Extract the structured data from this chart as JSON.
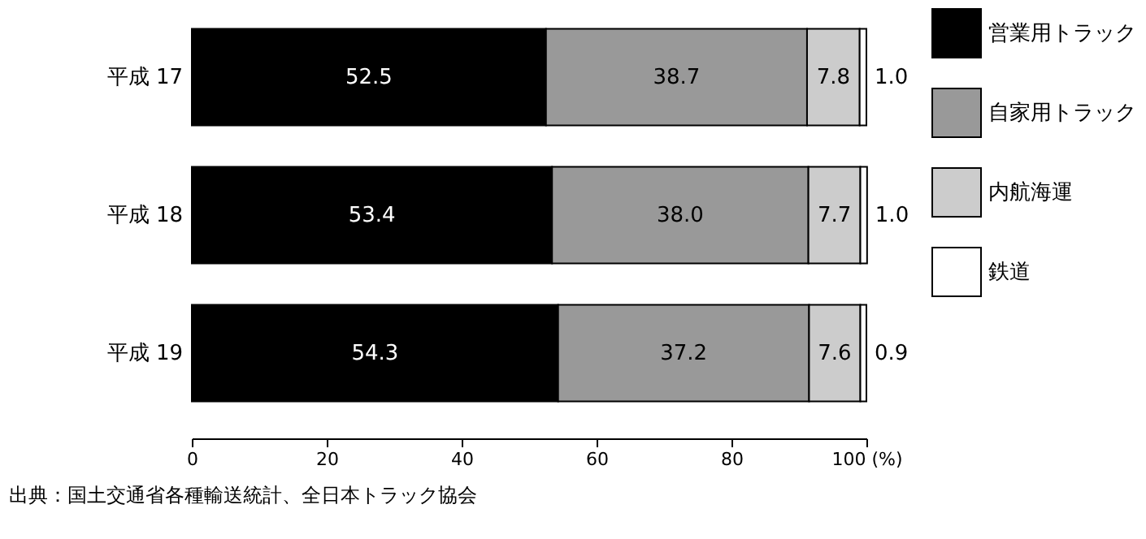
{
  "chart_data": {
    "type": "bar",
    "orientation": "horizontal",
    "stacked": true,
    "categories": [
      "平成 17",
      "平成 18",
      "平成 19"
    ],
    "series": [
      {
        "name": "営業用トラック",
        "color": "#000000",
        "values": [
          52.5,
          53.4,
          54.3
        ]
      },
      {
        "name": "自家用トラック",
        "color": "#999999",
        "values": [
          38.7,
          38.0,
          37.2
        ]
      },
      {
        "name": "内航海運",
        "color": "#cccccc",
        "values": [
          7.8,
          7.7,
          7.6
        ]
      },
      {
        "name": "鉄道",
        "color": "#ffffff",
        "values": [
          1.0,
          1.0,
          0.9
        ]
      }
    ],
    "xlim": [
      0,
      100
    ],
    "xticks": [
      0,
      20,
      40,
      60,
      80,
      {
        "value": 100,
        "label": "100 (%)"
      }
    ],
    "value_labels": [
      [
        "52.5",
        "53.4",
        "54.3"
      ],
      [
        "38.7",
        "38.0",
        "37.2"
      ],
      [
        "7.8",
        "7.7",
        "7.6"
      ],
      [
        "1.0",
        "1.0",
        "0.9"
      ]
    ],
    "legend": "right",
    "grid": false,
    "annotations": [
      "出典：国土交通省各種輸送統計、全日本トラック協会"
    ]
  }
}
